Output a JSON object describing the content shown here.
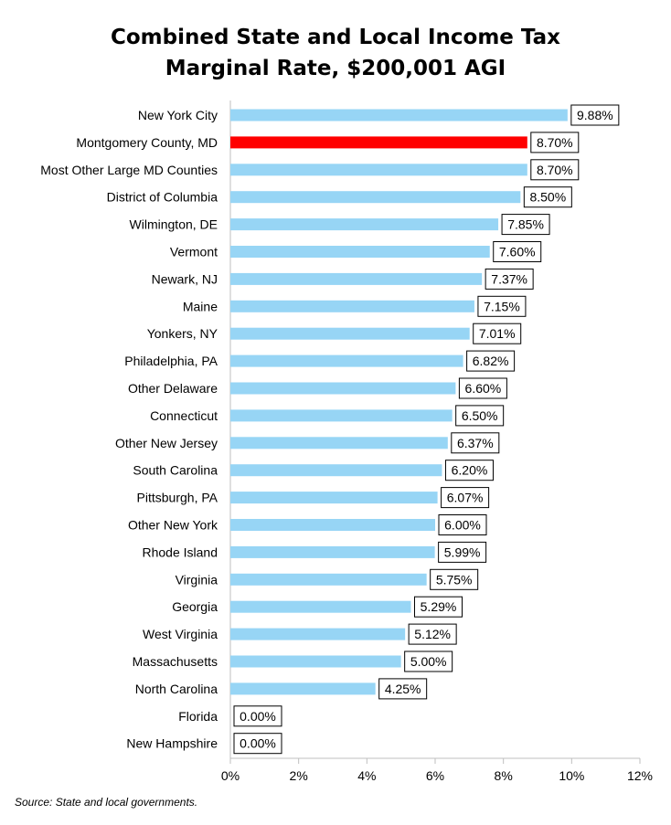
{
  "chart_data": {
    "type": "bar",
    "orientation": "horizontal",
    "title_lines": [
      "Combined State and Local Income Tax",
      "Marginal Rate, $200,001 AGI"
    ],
    "categories": [
      "New York City",
      "Montgomery County, MD",
      "Most Other Large MD Counties",
      "District of Columbia",
      "Wilmington, DE",
      "Vermont",
      "Newark, NJ",
      "Maine",
      "Yonkers, NY",
      "Philadelphia, PA",
      "Other Delaware",
      "Connecticut",
      "Other New Jersey",
      "South Carolina",
      "Pittsburgh, PA",
      "Other New York",
      "Rhode Island",
      "Virginia",
      "Georgia",
      "West Virginia",
      "Massachusetts",
      "North Carolina",
      "Florida",
      "New Hampshire"
    ],
    "values": [
      9.88,
      8.7,
      8.7,
      8.5,
      7.85,
      7.6,
      7.37,
      7.15,
      7.01,
      6.82,
      6.6,
      6.5,
      6.37,
      6.2,
      6.07,
      6.0,
      5.99,
      5.75,
      5.29,
      5.12,
      5.0,
      4.25,
      0.0,
      0.0
    ],
    "data_labels": [
      "9.88%",
      "8.70%",
      "8.70%",
      "8.50%",
      "7.85%",
      "7.60%",
      "7.37%",
      "7.15%",
      "7.01%",
      "6.82%",
      "6.60%",
      "6.50%",
      "6.37%",
      "6.20%",
      "6.07%",
      "6.00%",
      "5.99%",
      "5.75%",
      "5.29%",
      "5.12%",
      "5.00%",
      "4.25%",
      "0.00%",
      "0.00%"
    ],
    "highlight_category": "Montgomery County, MD",
    "colors": {
      "bar": "#97d5f5",
      "highlight": "#ff0000",
      "axis": "#bfbfbf",
      "text": "#000000"
    },
    "xlim": [
      0,
      12
    ],
    "xticks": [
      0,
      2,
      4,
      6,
      8,
      10,
      12
    ],
    "xtick_labels": [
      "0%",
      "2%",
      "4%",
      "6%",
      "8%",
      "10%",
      "12%"
    ],
    "grid": false,
    "legend": "none",
    "source": "Source: State and local governments."
  }
}
